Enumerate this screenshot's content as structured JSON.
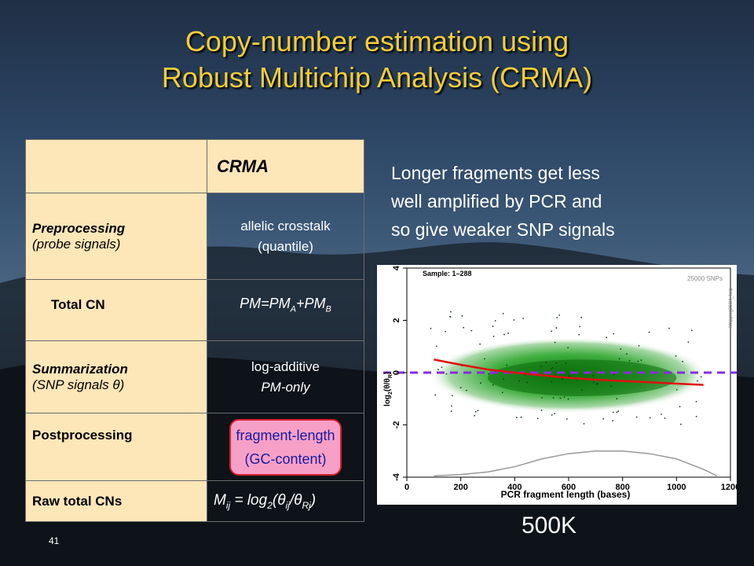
{
  "slide": {
    "title_line1": "Copy-number estimation using",
    "title_line2": "Robust Multichip Analysis (CRMA)",
    "page_number": "41",
    "footer_label": "500K"
  },
  "table": {
    "header": "CRMA",
    "rows": [
      {
        "label_main": "Preprocessing",
        "label_sub": "(probe signals)",
        "value_line1": "allelic crosstalk",
        "value_line2": "(quantile)"
      },
      {
        "label_main": "Total CN",
        "value": "PM=PM",
        "sub_a": "A",
        "plus": "+PM",
        "sub_b": "B"
      },
      {
        "label_main": "Summarization",
        "label_sub": "(SNP signals θ)",
        "value_line1": "log-additive",
        "value_line2": "PM-only"
      },
      {
        "label_main": "Postprocessing",
        "value_line1": "fragment-length",
        "value_line2": "(GC-content)"
      },
      {
        "label_main": "Raw total CNs",
        "m": "M",
        "m_sub": "ij",
        "eq": " = log",
        "two": "2",
        "open": "(",
        "theta1": "θ",
        "t1_sub": "ij",
        "slash": "/",
        "theta2": "θ",
        "t2_sub": "Rj",
        "close": ")"
      }
    ]
  },
  "side_text": {
    "line1": "Longer fragments get less",
    "line2": "well amplified by PCR and",
    "line3": "so give weaker SNP signals"
  },
  "plot_labels": {
    "sample": "Sample: 1–288",
    "snps": "25000 SNPs",
    "chip": "Mapping250K_Nsp",
    "ylabel": "log",
    "ylabel_sub": "2",
    "ylabel_rest": "(θ/θ",
    "ylabel_r": "R",
    "ylabel_end": ")",
    "xlabel": "PCR fragment length (bases)"
  },
  "chart_data": {
    "type": "scatter",
    "xlabel": "PCR fragment length (bases)",
    "ylabel": "log2(θ/θR)",
    "xlim": [
      0,
      1200
    ],
    "ylim": [
      -4,
      4
    ],
    "xticks": [
      0,
      200,
      400,
      600,
      800,
      1000,
      1200
    ],
    "yticks": [
      -4,
      -2,
      0,
      2,
      4
    ],
    "series": [
      {
        "values": [
          [
            100,
            0.5
          ],
          [
            200,
            0.3
          ],
          [
            300,
            0.12
          ],
          [
            400,
            0.0
          ],
          [
            500,
            -0.1
          ],
          [
            600,
            -0.2
          ],
          [
            700,
            -0.27
          ],
          [
            800,
            -0.32
          ],
          [
            900,
            -0.37
          ],
          [
            1000,
            -0.42
          ],
          [
            1100,
            -0.47
          ]
        ]
      },
      {
        "values": [
          [
            0,
            0
          ],
          [
            1200,
            0
          ]
        ]
      },
      {
        "values": [
          [
            100,
            -3.95
          ],
          [
            200,
            -3.9
          ],
          [
            300,
            -3.8
          ],
          [
            400,
            -3.6
          ],
          [
            500,
            -3.3
          ],
          [
            600,
            -3.1
          ],
          [
            700,
            -3.0
          ],
          [
            800,
            -3.0
          ],
          [
            900,
            -3.1
          ],
          [
            1000,
            -3.3
          ],
          [
            1100,
            -3.7
          ],
          [
            1150,
            -3.95
          ]
        ]
      }
    ],
    "colors": {
      "fit": "#e01010",
      "reference": "#8a2be2",
      "density": "#1e8a1e",
      "distribution": "#999999"
    }
  }
}
